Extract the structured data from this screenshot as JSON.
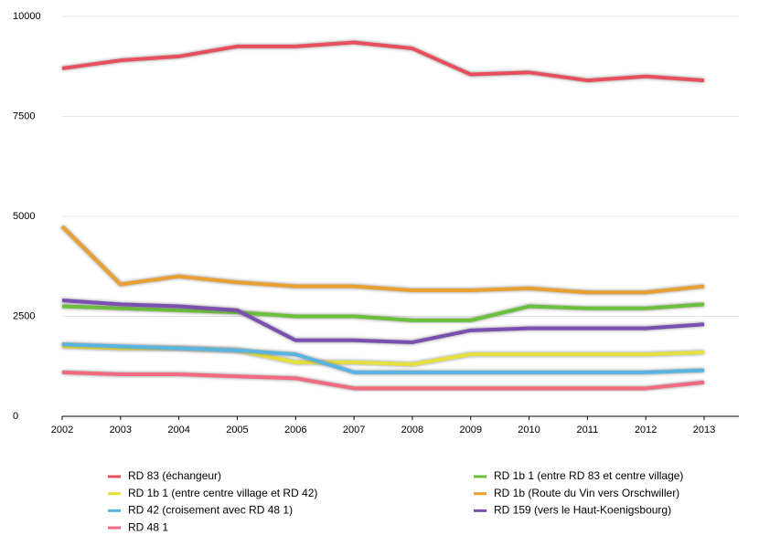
{
  "chart_data": {
    "type": "line",
    "categories": [
      "2002",
      "2003",
      "2004",
      "2005",
      "2006",
      "2007",
      "2008",
      "2009",
      "2010",
      "2011",
      "2012",
      "2013"
    ],
    "ylim": [
      0,
      10000
    ],
    "yticks": [
      0,
      2500,
      5000,
      7500,
      10000
    ],
    "grid": true,
    "series": [
      {
        "name": "RD 83 (échangeur)",
        "color": "#e8505b",
        "values": [
          8700,
          8900,
          9000,
          9250,
          9250,
          9350,
          9200,
          8550,
          8600,
          8400,
          8500,
          8400
        ]
      },
      {
        "name": "RD 1b 1 (entre centre village et RD 42)",
        "color": "#e6e03c",
        "values": [
          1750,
          1700,
          1700,
          1650,
          1350,
          1350,
          1300,
          1550,
          1550,
          1550,
          1550,
          1600
        ]
      },
      {
        "name": "RD 42 (croisement avec RD 48 1)",
        "color": "#5ab4e0",
        "values": [
          1800,
          1750,
          1700,
          1650,
          1550,
          1100,
          1100,
          1100,
          1100,
          1100,
          1100,
          1150
        ]
      },
      {
        "name": "RD 48 1",
        "color": "#f06a80",
        "values": [
          1100,
          1050,
          1050,
          1000,
          950,
          700,
          700,
          700,
          700,
          700,
          700,
          850
        ]
      },
      {
        "name": "RD 1b 1 (entre RD 83 et centre village)",
        "color": "#6cbf3a",
        "values": [
          2750,
          2700,
          2650,
          2600,
          2500,
          2500,
          2400,
          2400,
          2750,
          2700,
          2700,
          2800
        ]
      },
      {
        "name": "RD 1b (Route du Vin vers Orschwiller)",
        "color": "#e8a030",
        "values": [
          4750,
          3300,
          3500,
          3350,
          3250,
          3250,
          3150,
          3150,
          3200,
          3100,
          3100,
          3250
        ]
      },
      {
        "name": "RD 159 (vers le Haut-Koenigsbourg)",
        "color": "#7a4fb0",
        "values": [
          2900,
          2800,
          2750,
          2650,
          1900,
          1900,
          1850,
          2150,
          2200,
          2200,
          2200,
          2300
        ]
      }
    ]
  }
}
